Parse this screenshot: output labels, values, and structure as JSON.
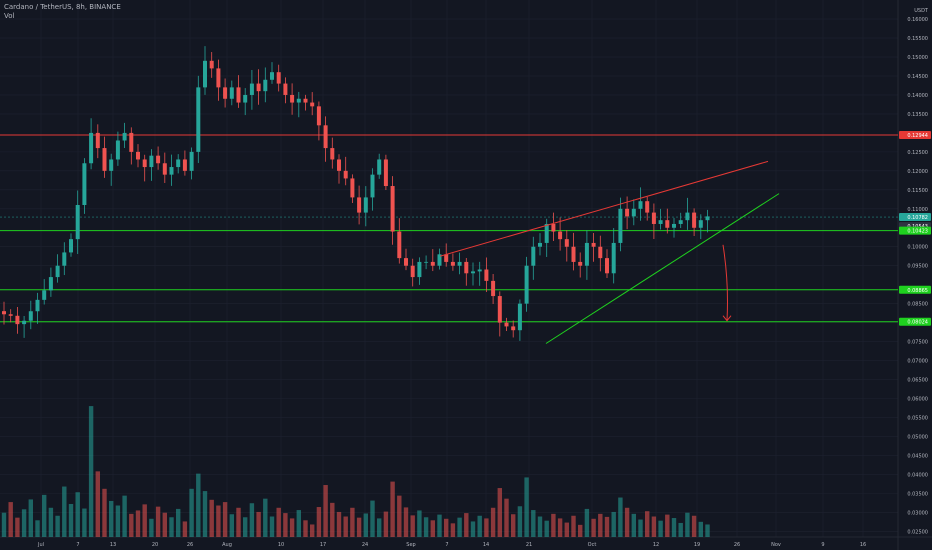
{
  "header": {
    "symbol_line": "Cardano / TetherUS, 8h, BINANCE",
    "volume_label": "Vol"
  },
  "colors": {
    "background": "#131722",
    "grid": "#1e2230",
    "up": "#26a69a",
    "down": "#ef5350",
    "resistance": "#e53935",
    "support": "#1fd11f",
    "axis_text": "#b2b5be"
  },
  "chart_data": {
    "type": "candlestick",
    "symbol": "Cardano / TetherUS",
    "interval": "8h",
    "exchange": "BINANCE",
    "y_axis": {
      "unit": "USDT",
      "ticks": [
        0.16,
        0.155,
        0.15,
        0.145,
        0.14,
        0.135,
        0.125,
        0.12,
        0.115,
        0.11,
        0.1,
        0.095,
        0.085,
        0.08,
        0.075,
        0.07,
        0.065,
        0.06,
        0.055,
        0.05,
        0.045,
        0.04,
        0.035,
        0.03,
        0.025
      ],
      "tick_labels": [
        "0.16000",
        "0.15500",
        "0.15000",
        "0.14500",
        "0.14000",
        "0.13500",
        "0.12500",
        "0.12000",
        "0.11500",
        "0.11000",
        "0.10000",
        "0.09500",
        "0.08500",
        "0.08000",
        "0.07500",
        "0.07000",
        "0.06500",
        "0.06000",
        "0.05500",
        "0.05000",
        "0.04500",
        "0.04000",
        "0.03500",
        "0.03000",
        "0.02500"
      ],
      "ylim": [
        0.0235,
        0.1645
      ]
    },
    "x_axis": {
      "tick_labels": [
        "Jul",
        "7",
        "13",
        "20",
        "26",
        "Aug",
        "10",
        "17",
        "24",
        "Sep",
        "7",
        "14",
        "21",
        "Oct",
        "12",
        "19",
        "26",
        "Nov",
        "9",
        "16"
      ]
    },
    "price_tags": [
      {
        "value": 0.12944,
        "label": "0.12944",
        "color": "#e53935"
      },
      {
        "value": 0.10782,
        "label": "0.10782",
        "color": "#26a69a"
      },
      {
        "value": 0.10543,
        "label": "0.10543",
        "color": "#2f3342"
      },
      {
        "value": 0.10423,
        "label": "0.10423",
        "color": "#1fd11f"
      },
      {
        "value": 0.08865,
        "label": "0.08865",
        "color": "#1fd11f"
      },
      {
        "value": 0.08024,
        "label": "0.08024",
        "color": "#1fd11f"
      }
    ],
    "horizontal_levels": [
      {
        "value": 0.12944,
        "color": "#e53935"
      },
      {
        "value": 0.10423,
        "color": "#1fd11f"
      },
      {
        "value": 0.08865,
        "color": "#1fd11f"
      },
      {
        "value": 0.08024,
        "color": "#1fd11f"
      }
    ],
    "current_price": 0.10782,
    "trend_lines": [
      {
        "role": "resistance",
        "color": "#e53935",
        "from": [
          1,
          0.0975
        ],
        "to": [
          69,
          0.1225
        ]
      },
      {
        "role": "support",
        "color": "#1fd11f",
        "from": [
          22,
          0.0745
        ],
        "to": [
          75,
          0.114
        ]
      }
    ],
    "projection_arrow": {
      "color": "#e53935",
      "from": 0.1005,
      "to": 0.0805
    },
    "close_series": [
      0.0822,
      0.0818,
      0.0796,
      0.0805,
      0.083,
      0.086,
      0.0885,
      0.092,
      0.095,
      0.0985,
      0.102,
      0.111,
      0.122,
      0.13,
      0.126,
      0.12,
      0.123,
      0.128,
      0.13,
      0.125,
      0.123,
      0.121,
      0.124,
      0.122,
      0.119,
      0.121,
      0.123,
      0.12,
      0.125,
      0.142,
      0.149,
      0.147,
      0.142,
      0.139,
      0.142,
      0.138,
      0.14,
      0.143,
      0.141,
      0.144,
      0.146,
      0.143,
      0.14,
      0.138,
      0.139,
      0.138,
      0.137,
      0.132,
      0.126,
      0.123,
      0.12,
      0.118,
      0.113,
      0.109,
      0.113,
      0.119,
      0.123,
      0.116,
      0.104,
      0.097,
      0.095,
      0.092,
      0.096,
      0.096,
      0.095,
      0.098,
      0.096,
      0.095,
      0.096,
      0.093,
      0.0935,
      0.094,
      0.091,
      0.087,
      0.08,
      0.079,
      0.078,
      0.085,
      0.095,
      0.1,
      0.101,
      0.106,
      0.104,
      0.102,
      0.1,
      0.096,
      0.095,
      0.101,
      0.1,
      0.097,
      0.093,
      0.101,
      0.11,
      0.108,
      0.11,
      0.112,
      0.109,
      0.106,
      0.107,
      0.105,
      0.106,
      0.107,
      0.109,
      0.105,
      0.107,
      0.108
    ],
    "volume_series": [
      0.0299,
      0.0327,
      0.0286,
      0.0308,
      0.0334,
      0.0279,
      0.0346,
      0.0312,
      0.0291,
      0.0368,
      0.0322,
      0.0353,
      0.031,
      0.058,
      0.0408,
      0.0362,
      0.033,
      0.0318,
      0.0344,
      0.0296,
      0.0305,
      0.0321,
      0.0283,
      0.0315,
      0.0299,
      0.0287,
      0.0309,
      0.0276,
      0.0362,
      0.0402,
      0.0356,
      0.0333,
      0.0318,
      0.0327,
      0.0295,
      0.0312,
      0.0287,
      0.0324,
      0.0301,
      0.0336,
      0.0289,
      0.0312,
      0.0298,
      0.0284,
      0.0306,
      0.0279,
      0.0268,
      0.0314,
      0.0372,
      0.0325,
      0.0301,
      0.0289,
      0.0312,
      0.0286,
      0.0297,
      0.0331,
      0.0284,
      0.0302,
      0.0381,
      0.0344,
      0.0313,
      0.0292,
      0.0305,
      0.0287,
      0.0279,
      0.0294,
      0.0283,
      0.0271,
      0.0286,
      0.0298,
      0.0276,
      0.0291,
      0.0284,
      0.0312,
      0.0364,
      0.0336,
      0.0295,
      0.0316,
      0.0392,
      0.0306,
      0.0289,
      0.0278,
      0.0296,
      0.0284,
      0.0273,
      0.0291,
      0.0267,
      0.0309,
      0.0283,
      0.0296,
      0.0288,
      0.0301,
      0.0339,
      0.0312,
      0.0296,
      0.0281,
      0.0303,
      0.0289,
      0.0278,
      0.0294,
      0.0285,
      0.0272,
      0.0299,
      0.0291,
      0.0275,
      0.0268
    ],
    "volume_note": "volume bars plotted against the shared USDT price scale (bars start at 0.0235)"
  }
}
